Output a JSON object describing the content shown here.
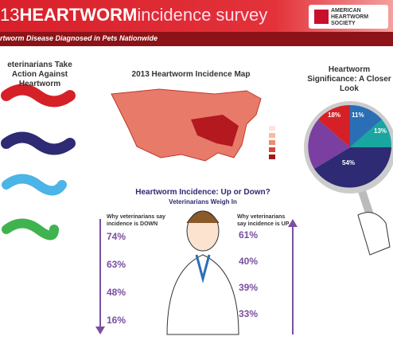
{
  "header": {
    "year": "13",
    "title": "HEARTWORM",
    "subtitle": "incidence survey",
    "org": "AMERICAN HEARTWORM SOCIETY"
  },
  "banner": "rtworm Disease Diagnosed in Pets Nationwide",
  "sections": {
    "left": "eterinarians Take Action Against Heartworm",
    "map": "2013 Heartworm Incidence Map",
    "right": "Heartworm Significance: A Closer Look",
    "center": "Heartworm Incidence: Up or Down?",
    "center_sub": "Veterinarians Weigh In"
  },
  "down": {
    "heading": "Why veterinarians say incidence is DOWN",
    "stats": [
      "74%",
      "63%",
      "48%",
      "16%"
    ]
  },
  "up": {
    "heading": "Why veterinarians say incidence is UP",
    "stats": [
      "61%",
      "40%",
      "39%",
      "33%"
    ]
  },
  "pie": [
    "18%",
    "11%",
    "13%",
    "54%"
  ]
}
